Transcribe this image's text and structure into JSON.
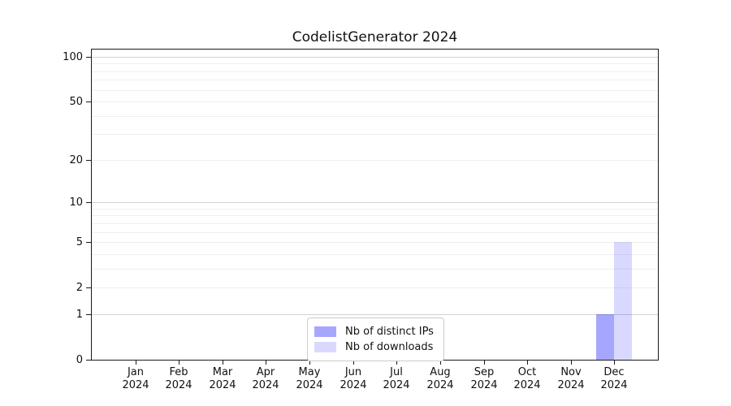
{
  "figure": {
    "background": "#ffffff",
    "title": "CodelistGenerator 2024"
  },
  "chart_data": {
    "type": "bar",
    "title": "CodelistGenerator 2024",
    "xlabel": "",
    "ylabel": "",
    "categories": [
      "Jan 2024",
      "Feb 2024",
      "Mar 2024",
      "Apr 2024",
      "May 2024",
      "Jun 2024",
      "Jul 2024",
      "Aug 2024",
      "Sep 2024",
      "Oct 2024",
      "Nov 2024",
      "Dec 2024"
    ],
    "series": [
      {
        "name": "Nb of distinct IPs",
        "color": "#0000ff",
        "opacity": 0.35,
        "values": [
          0,
          0,
          0,
          0,
          0,
          0,
          0,
          0,
          0,
          0,
          0,
          1
        ]
      },
      {
        "name": "Nb of downloads",
        "color": "#0000ff",
        "opacity": 0.15,
        "values": [
          0,
          0,
          0,
          0,
          0,
          0,
          0,
          0,
          0,
          0,
          0,
          5
        ]
      }
    ],
    "yscale": "log1p",
    "ylim": [
      0,
      100
    ],
    "yticks": [
      0,
      1,
      2,
      5,
      10,
      20,
      50,
      100
    ],
    "grid": {
      "major_lines": [
        1,
        10,
        100
      ],
      "minor_lines": [
        2,
        3,
        4,
        5,
        6,
        7,
        8,
        9,
        20,
        30,
        40,
        50,
        60,
        70,
        80,
        90
      ],
      "major_color": "#d2d2d2",
      "minor_color": "#efefef"
    },
    "legend_position": "lower center",
    "legend_entries": [
      "Nb of distinct IPs",
      "Nb of downloads"
    ]
  }
}
